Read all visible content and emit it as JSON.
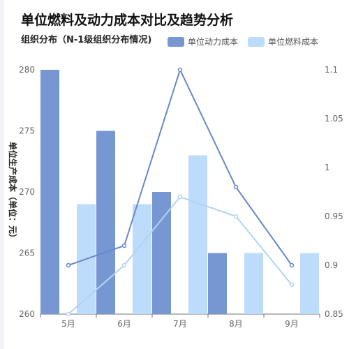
{
  "title": "单位燃料及动力成本对比及趋势分析",
  "subtitle": "组织分布（N-1级组织分布情况)",
  "legend": [
    {
      "label": "单位动力成本",
      "color": "#7797d3"
    },
    {
      "label": "单位燃料成本",
      "color": "#bddbfb"
    }
  ],
  "chart_data": {
    "type": "bar",
    "categories": [
      "5月",
      "6月",
      "7月",
      "8月",
      "9月"
    ],
    "series": [
      {
        "name": "单位动力成本",
        "type": "bar",
        "axis": "left",
        "color": "#7797d3",
        "values": [
          280,
          275,
          270,
          265,
          null
        ]
      },
      {
        "name": "单位燃料成本",
        "type": "bar",
        "axis": "left",
        "color": "#bddbfb",
        "values": [
          269,
          269,
          273,
          265,
          265
        ]
      },
      {
        "type": "line",
        "axis": "right",
        "color": "#6a87c8",
        "values": [
          0.9,
          0.92,
          1.1,
          0.98,
          0.9
        ]
      },
      {
        "type": "line",
        "axis": "right",
        "color": "#b3d3f3",
        "values": [
          0.85,
          0.9,
          0.97,
          0.95,
          0.88
        ]
      }
    ],
    "y_left": {
      "min": 260,
      "max": 280,
      "ticks": [
        260,
        265,
        270,
        275,
        280
      ],
      "label": "单位生产成本（单位：元）"
    },
    "y_right": {
      "min": 0.85,
      "max": 1.1,
      "ticks": [
        "0.85",
        "0.9",
        "0.95",
        "1",
        "1.05",
        "1.1"
      ]
    },
    "grid": false,
    "legend_position": "top-right"
  }
}
